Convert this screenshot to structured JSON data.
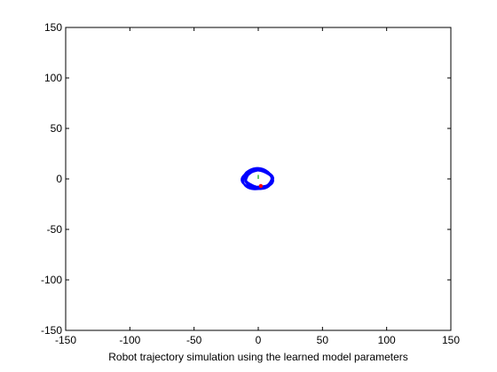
{
  "chart_data": {
    "type": "scatter",
    "title": "",
    "xlabel": "Robot trajectory simulation using the learned model parameters",
    "ylabel": "",
    "xlim": [
      -150,
      150
    ],
    "ylim": [
      -150,
      150
    ],
    "xticks": [
      -150,
      -100,
      -50,
      0,
      50,
      100,
      150
    ],
    "yticks": [
      -150,
      -100,
      -50,
      0,
      50,
      100,
      150
    ],
    "grid": false,
    "legend": "none",
    "series": [
      {
        "kind": "trajectory-loop",
        "color": "#0000ff",
        "center": [
          0,
          0
        ],
        "radius_x": 11,
        "radius_y": 9,
        "loops": 6
      },
      {
        "kind": "robot-heading",
        "color": "#00aa00",
        "points": [
          [
            0,
            0
          ],
          [
            0,
            4
          ]
        ]
      },
      {
        "kind": "robot-position",
        "color": "#ff0000",
        "points": [
          [
            2,
            -7
          ]
        ]
      }
    ]
  }
}
